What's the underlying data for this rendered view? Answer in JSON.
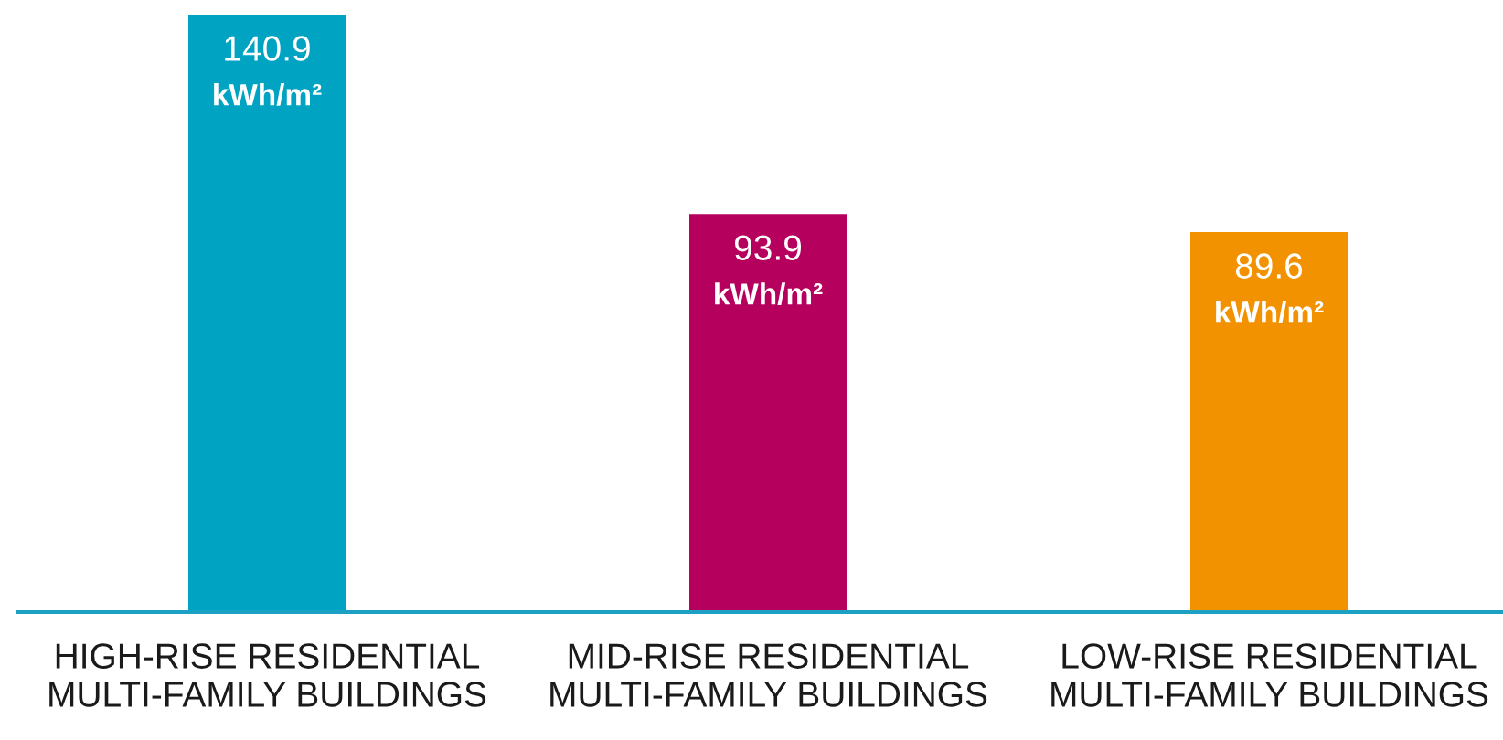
{
  "chart_data": {
    "type": "bar",
    "categories": [
      "HIGH-RISE RESIDENTIAL\nMULTI-FAMILY BUILDINGS",
      "MID-RISE RESIDENTIAL\nMULTI-FAMILY BUILDINGS",
      "LOW-RISE RESIDENTIAL\nMULTI-FAMILY BUILDINGS"
    ],
    "values": [
      140.9,
      93.9,
      89.6
    ],
    "colors": [
      "#00a3c1",
      "#b5005e",
      "#f39200"
    ],
    "value_labels": [
      "140.9\nkWh/m²",
      "93.9\nkWh/m²",
      "89.6\nkWh/m²"
    ],
    "grid": false,
    "legend": false
  }
}
